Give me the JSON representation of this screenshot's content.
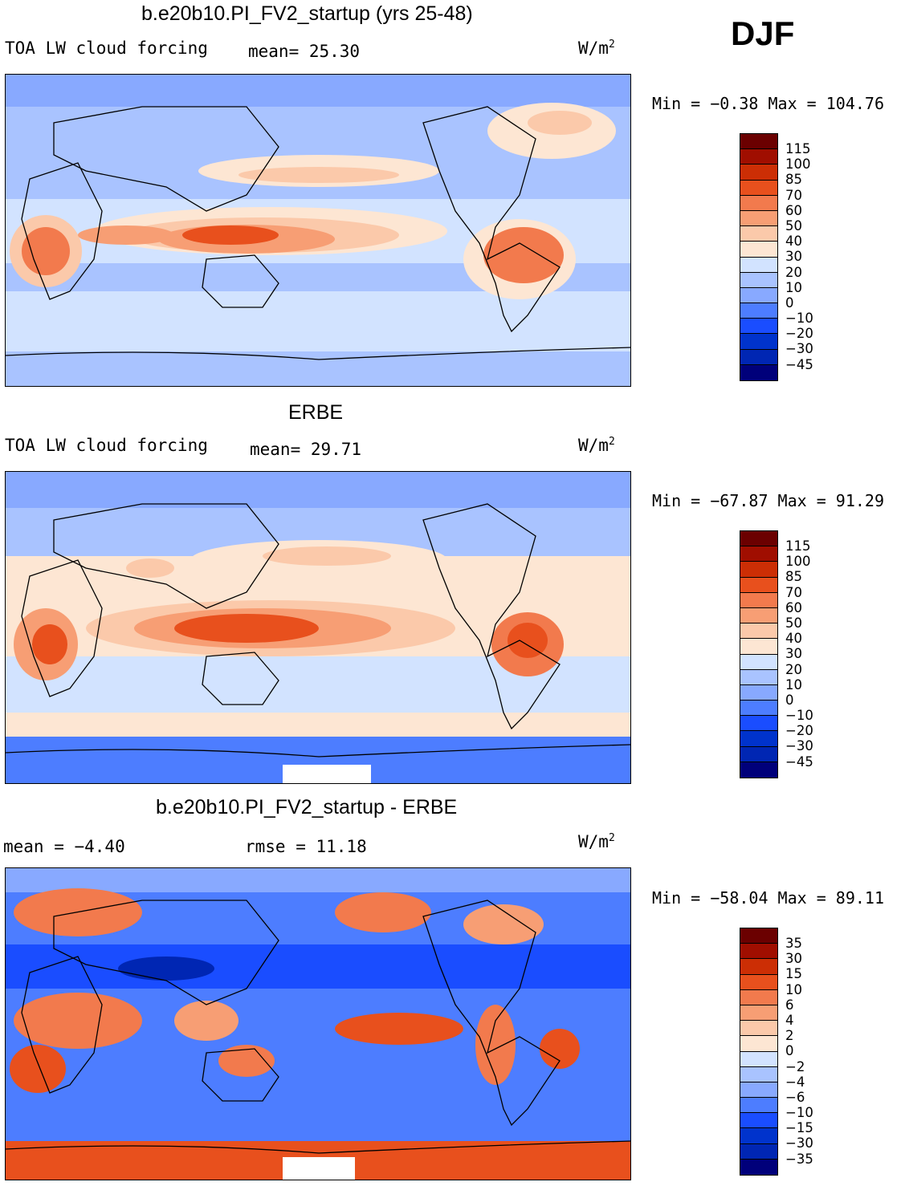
{
  "season": "DJF",
  "colors": {
    "abs_scale": [
      "#00007a",
      "#0026b3",
      "#0033cc",
      "#1a4dff",
      "#4d7dff",
      "#88a9ff",
      "#a9c3ff",
      "#d2e3ff",
      "#fde6d3",
      "#fbc9aa",
      "#f79e74",
      "#f27a4d",
      "#e8501d",
      "#cc2e05",
      "#a00e00",
      "#6b0000"
    ],
    "diff_scale": [
      "#00007a",
      "#0026b3",
      "#0033cc",
      "#1a4dff",
      "#4d7dff",
      "#88a9ff",
      "#a9c3ff",
      "#d2e3ff",
      "#fde6d3",
      "#fbc9aa",
      "#f79e74",
      "#f27a4d",
      "#e8501d",
      "#cc2e05",
      "#a00e00",
      "#6b0000"
    ]
  },
  "panels": [
    {
      "title": "b.e20b10.PI_FV2_startup (yrs 25-48)",
      "left_label": "TOA LW cloud forcing",
      "mid_label": "mean=  25.30",
      "units": "W/m",
      "units_sup": "2",
      "min_label": "Min =  −0.38 Max = 104.76",
      "levels": [
        "115",
        "100",
        "85",
        "70",
        "60",
        "50",
        "40",
        "30",
        "20",
        "10",
        "0",
        "−10",
        "−20",
        "−30",
        "−45"
      ]
    },
    {
      "title": "ERBE",
      "left_label": "TOA LW cloud forcing",
      "mid_label": "mean=  29.71",
      "units": "W/m",
      "units_sup": "2",
      "min_label": "Min = −67.87 Max =  91.29",
      "levels": [
        "115",
        "100",
        "85",
        "70",
        "60",
        "50",
        "40",
        "30",
        "20",
        "10",
        "0",
        "−10",
        "−20",
        "−30",
        "−45"
      ]
    },
    {
      "title": "b.e20b10.PI_FV2_startup - ERBE",
      "left_label": "mean =  −4.40",
      "mid_label": "rmse =  11.18",
      "units": "W/m",
      "units_sup": "2",
      "min_label": "Min = −58.04 Max =  89.11",
      "levels": [
        "35",
        "30",
        "15",
        "10",
        "6",
        "4",
        "2",
        "0",
        "−2",
        "−4",
        "−6",
        "−10",
        "−15",
        "−30",
        "−35"
      ]
    }
  ]
}
